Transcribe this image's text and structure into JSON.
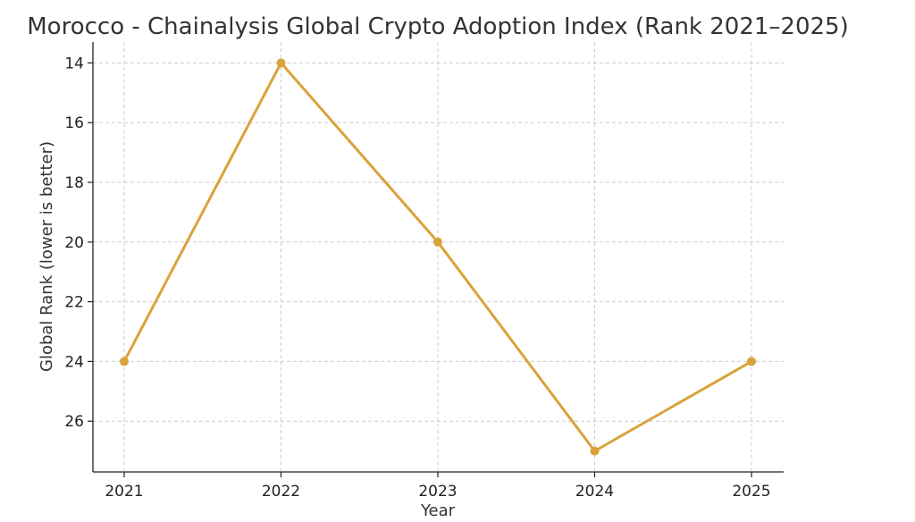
{
  "chart_data": {
    "type": "line",
    "title": "Morocco - Chainalysis Global Crypto Adoption Index (Rank 2021–2025)",
    "xlabel": "Year",
    "ylabel": "Global Rank (lower is better)",
    "x": [
      "2021",
      "2022",
      "2023",
      "2024",
      "2025"
    ],
    "series": [
      {
        "values": [
          24,
          14,
          20,
          27,
          24
        ],
        "color": "#D9A33A"
      }
    ],
    "y_ticks": [
      "14",
      "16",
      "18",
      "20",
      "22",
      "24",
      "26"
    ],
    "ylim": [
      27.7,
      13.3
    ],
    "y_inverted": true,
    "grid": true,
    "legend": "none"
  }
}
